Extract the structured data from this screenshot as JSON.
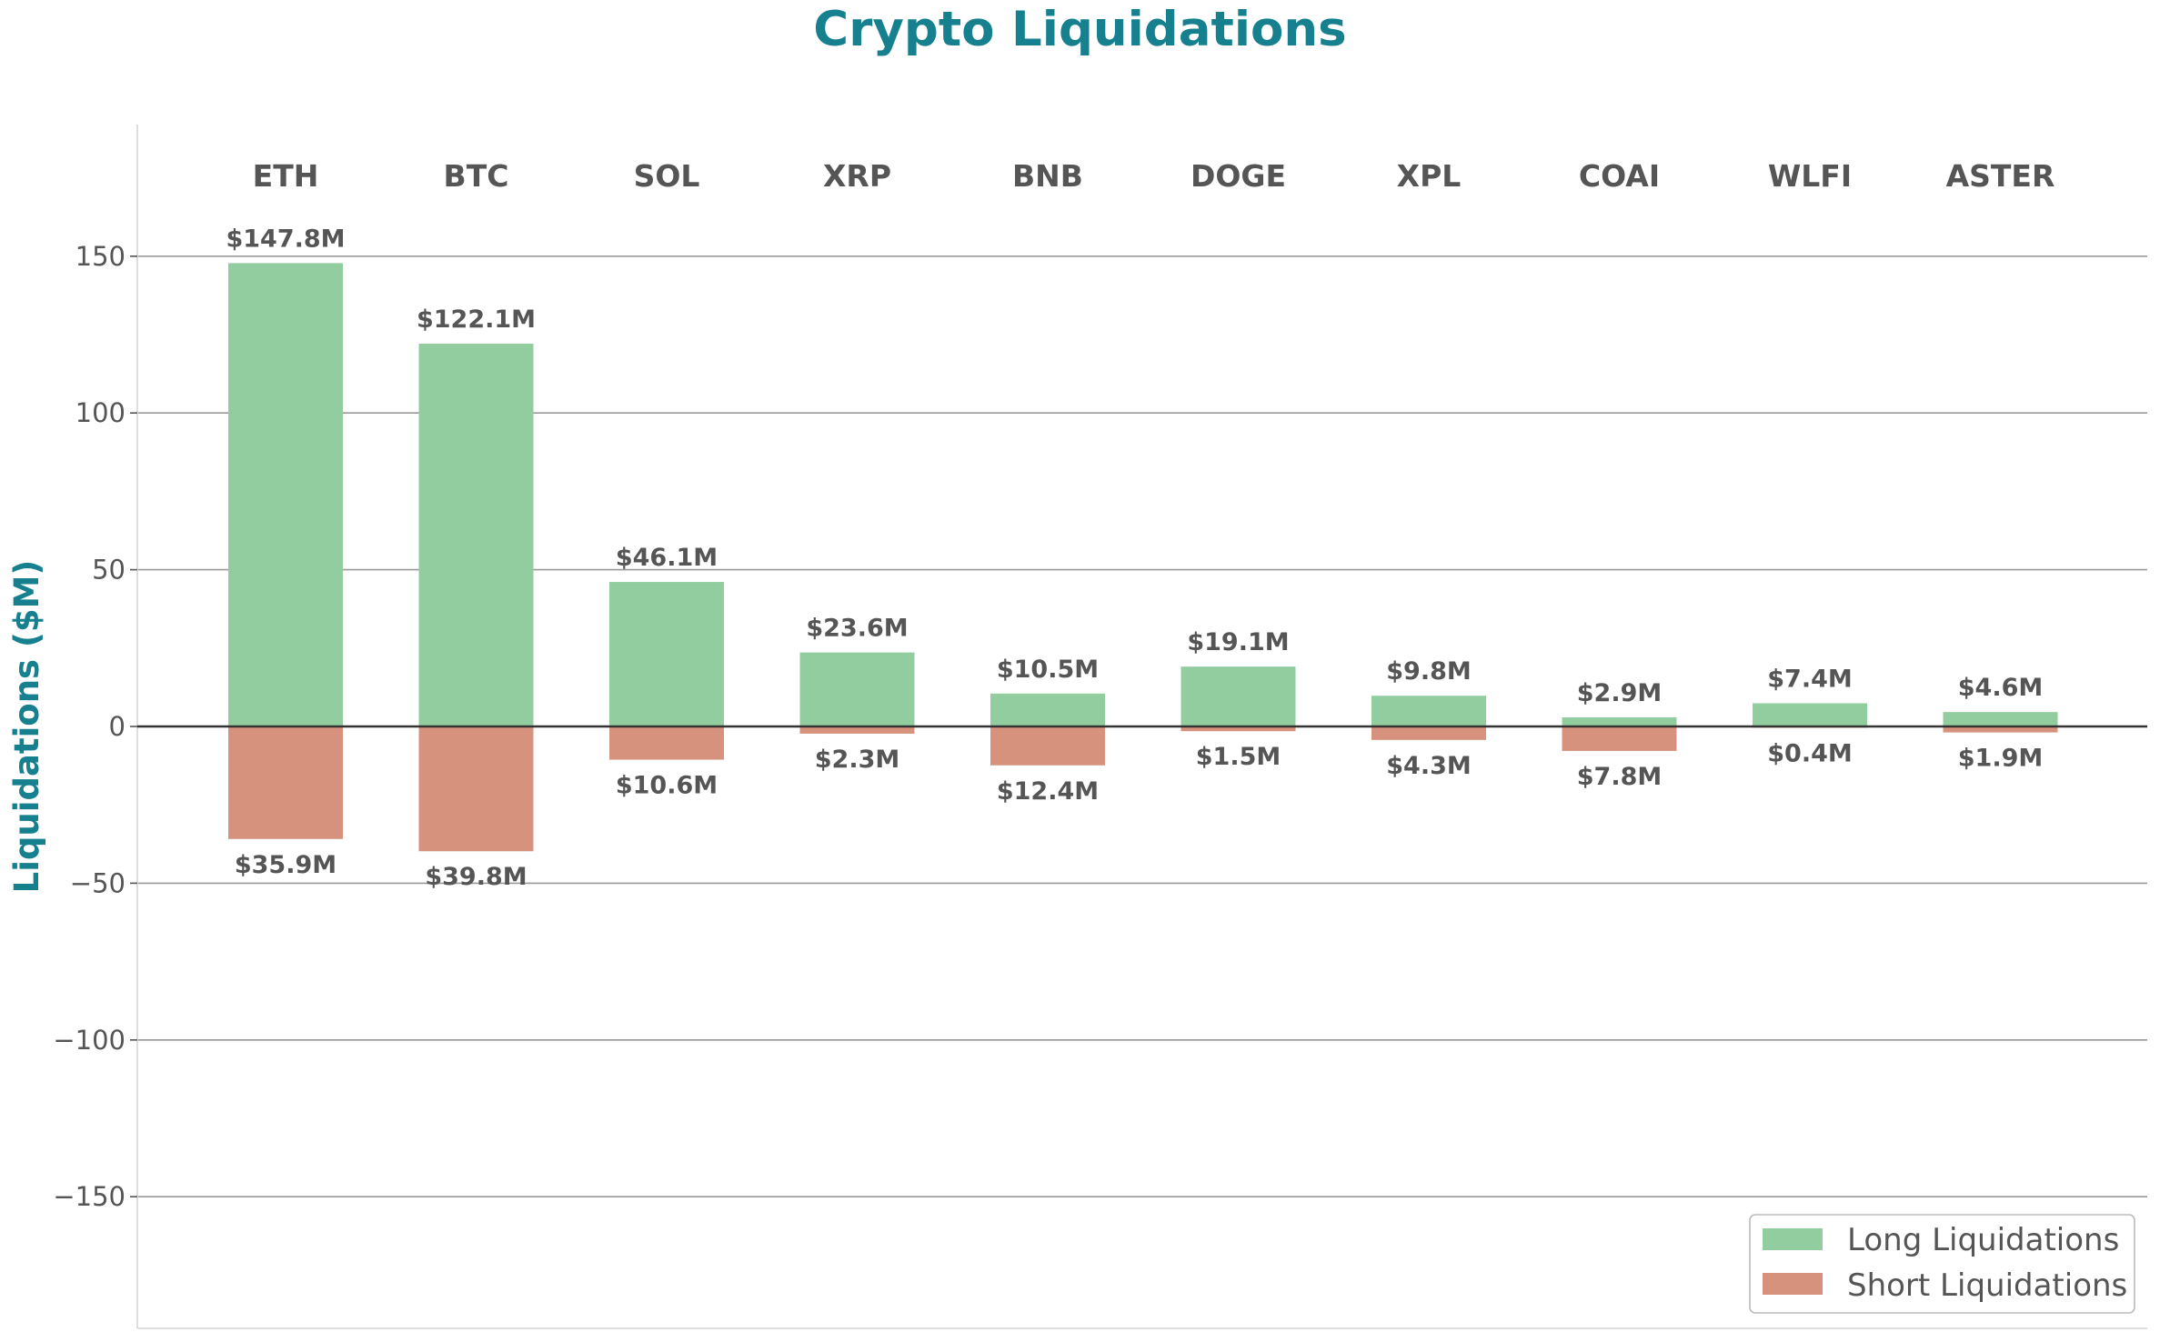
{
  "chart_data": {
    "type": "bar",
    "title": "Crypto Liquidations",
    "xlabel": "",
    "ylabel": "Liquidations ($M)",
    "ylim": [
      -192,
      192
    ],
    "yticks": [
      150,
      100,
      50,
      0,
      -50,
      -100,
      -150
    ],
    "ytick_labels": [
      "150",
      "100",
      "50",
      "0",
      "−50",
      "−100",
      "−150"
    ],
    "grid": true,
    "legend_position": "bottom-right",
    "categories": [
      "ETH",
      "BTC",
      "SOL",
      "XRP",
      "BNB",
      "DOGE",
      "XPL",
      "COAI",
      "WLFI",
      "ASTER"
    ],
    "series": [
      {
        "name": "Long Liquidations",
        "color": "#92cda0",
        "values": [
          147.8,
          122.1,
          46.1,
          23.6,
          10.5,
          19.1,
          9.8,
          2.9,
          7.4,
          4.6
        ],
        "labels": [
          "$147.8M",
          "$122.1M",
          "$46.1M",
          "$23.6M",
          "$10.5M",
          "$19.1M",
          "$9.8M",
          "$2.9M",
          "$7.4M",
          "$4.6M"
        ]
      },
      {
        "name": "Short Liquidations",
        "color": "#d6927c",
        "values": [
          -35.9,
          -39.8,
          -10.6,
          -2.3,
          -12.4,
          -1.5,
          -4.3,
          -7.8,
          -0.4,
          -1.9
        ],
        "labels": [
          "$35.9M",
          "$39.8M",
          "$10.6M",
          "$2.3M",
          "$12.4M",
          "$1.5M",
          "$4.3M",
          "$7.8M",
          "$0.4M",
          "$1.9M"
        ]
      }
    ]
  }
}
